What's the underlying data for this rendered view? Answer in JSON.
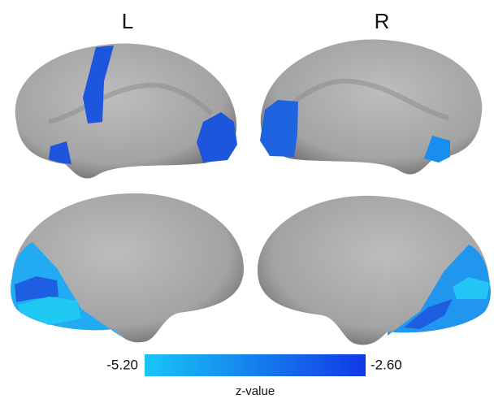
{
  "hemispheres": {
    "left": "L",
    "right": "R"
  },
  "colorbar": {
    "label": "z-value",
    "lim": [
      -5.2,
      -2.6
    ],
    "ticks": [
      {
        "value": -5.2,
        "label": "-5.20"
      },
      {
        "value": -2.6,
        "label": "-2.60"
      }
    ],
    "colors": [
      "#18c6f6",
      "#1238e6"
    ]
  }
}
